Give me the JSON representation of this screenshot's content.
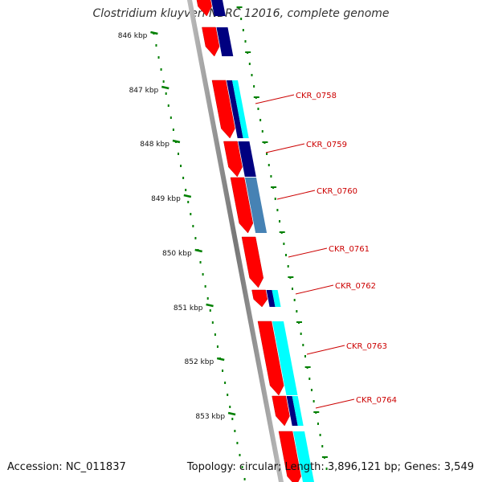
{
  "title": "Clostridium kluyveri NBRC 12016, complete genome",
  "footer": {
    "accession": "Accession: NC_011837",
    "summary": "Topology: circular; Length: 3,896,121 bp; Genes: 3,549"
  },
  "ruler": {
    "ticks": [
      "846 kbp",
      "847 kbp",
      "848 kbp",
      "849 kbp",
      "850 kbp",
      "851 kbp",
      "852 kbp",
      "853 kbp"
    ]
  },
  "genes": [
    {
      "label": "CKR_0758"
    },
    {
      "label": "CKR_0759"
    },
    {
      "label": "CKR_0760"
    },
    {
      "label": "CKR_0761"
    },
    {
      "label": "CKR_0762"
    },
    {
      "label": "CKR_0763"
    },
    {
      "label": "CKR_0764"
    }
  ],
  "colors": {
    "backbone": "#888888",
    "cds": "#ff0000",
    "cog_navy": "#000080",
    "cog_cyan": "#00ffff",
    "cog_steel": "#4682b4",
    "ruler": "#008000",
    "gene_label": "#cc0000"
  }
}
